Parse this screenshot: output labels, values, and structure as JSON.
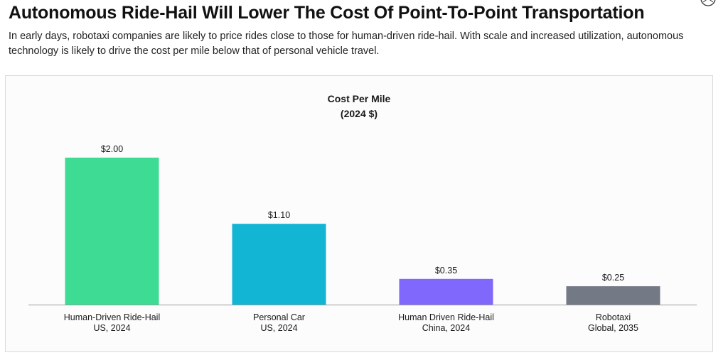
{
  "header": {
    "title": "Autonomous Ride-Hail Will Lower The Cost Of Point-To-Point Transportation",
    "subtitle": "In early days, robotaxi companies are likely to price rides close to those for human-driven ride-hail. With scale and increased utilization, autonomous technology is likely to drive the cost per mile below that of personal vehicle travel."
  },
  "logo": {
    "icon": "circle-logo-icon"
  },
  "chart_data": {
    "type": "bar",
    "title_lines": [
      "Cost Per Mile",
      "(2024 $)"
    ],
    "xlabel": "",
    "ylabel": "",
    "ylim": [
      0,
      2.3
    ],
    "grid": false,
    "categories": [
      [
        "Human-Driven Ride-Hail",
        "US, 2024"
      ],
      [
        "Personal Car",
        "US, 2024"
      ],
      [
        "Human Driven Ride-Hail",
        "China, 2024"
      ],
      [
        "Robotaxi",
        "Global, 2035"
      ]
    ],
    "values": [
      2.0,
      1.1,
      0.35,
      0.25
    ],
    "value_labels": [
      "$2.00",
      "$1.10",
      "$0.35",
      "$0.25"
    ],
    "colors": [
      "#3DDB93",
      "#13B5D4",
      "#7F68FB",
      "#737985"
    ]
  }
}
